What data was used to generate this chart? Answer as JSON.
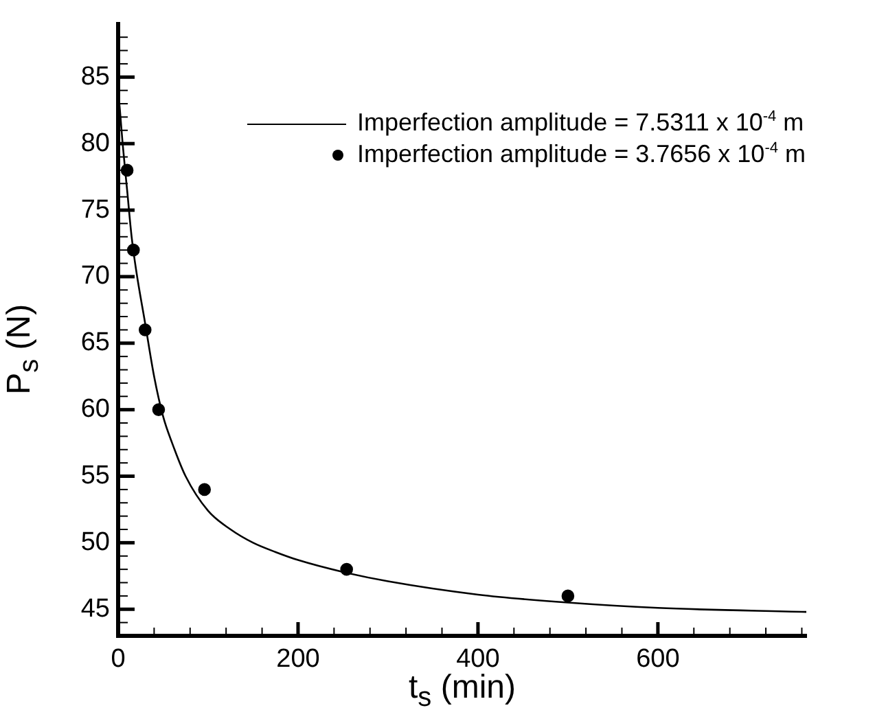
{
  "chart_data": {
    "type": "line",
    "xlabel": "t$_{s}$ (min)",
    "ylabel": "P$_{s}$ (N)",
    "xlim": [
      0,
      765
    ],
    "ylim": [
      43,
      89
    ],
    "xticks": [
      0,
      {
        "value": 40,
        "label": null
      },
      {
        "value": 80,
        "label": null
      },
      {
        "value": 120,
        "label": null
      },
      {
        "value": 160,
        "label": null
      },
      200,
      {
        "value": 240,
        "label": null
      },
      {
        "value": 280,
        "label": null
      },
      {
        "value": 320,
        "label": null
      },
      {
        "value": 360,
        "label": null
      },
      400,
      {
        "value": 440,
        "label": null
      },
      {
        "value": 480,
        "label": null
      },
      {
        "value": 520,
        "label": null
      },
      {
        "value": 560,
        "label": null
      },
      600,
      {
        "value": 640,
        "label": null
      },
      {
        "value": 680,
        "label": null
      },
      {
        "value": 720,
        "label": null
      },
      {
        "value": 760,
        "label": null
      }
    ],
    "yticks": [
      {
        "value": 44,
        "label": null
      },
      45,
      {
        "value": 46,
        "label": null
      },
      {
        "value": 47,
        "label": null
      },
      {
        "value": 48,
        "label": null
      },
      {
        "value": 49,
        "label": null
      },
      50,
      {
        "value": 51,
        "label": null
      },
      {
        "value": 52,
        "label": null
      },
      {
        "value": 53,
        "label": null
      },
      {
        "value": 54,
        "label": null
      },
      55,
      {
        "value": 56,
        "label": null
      },
      {
        "value": 57,
        "label": null
      },
      {
        "value": 58,
        "label": null
      },
      {
        "value": 59,
        "label": null
      },
      60,
      {
        "value": 61,
        "label": null
      },
      {
        "value": 62,
        "label": null
      },
      {
        "value": 63,
        "label": null
      },
      {
        "value": 64,
        "label": null
      },
      65,
      {
        "value": 66,
        "label": null
      },
      {
        "value": 67,
        "label": null
      },
      {
        "value": 68,
        "label": null
      },
      {
        "value": 69,
        "label": null
      },
      70,
      {
        "value": 71,
        "label": null
      },
      {
        "value": 72,
        "label": null
      },
      {
        "value": 73,
        "label": null
      },
      {
        "value": 74,
        "label": null
      },
      75,
      {
        "value": 76,
        "label": null
      },
      {
        "value": 77,
        "label": null
      },
      {
        "value": 78,
        "label": null
      },
      {
        "value": 79,
        "label": null
      },
      80,
      {
        "value": 81,
        "label": null
      },
      {
        "value": 82,
        "label": null
      },
      {
        "value": 83,
        "label": null
      },
      {
        "value": 84,
        "label": null
      },
      85,
      {
        "value": 86,
        "label": null
      },
      {
        "value": 87,
        "label": null
      },
      {
        "value": 88,
        "label": null
      }
    ],
    "grid": false,
    "legend": "top right",
    "series": [
      {
        "name": "Imperfection amplitude = 7.5311 x 10$^{-4}$ m",
        "color": "#000000",
        "marker": "none",
        "line_style": "solid",
        "x": [
          0,
          2,
          5,
          10,
          15,
          20,
          30,
          40,
          50,
          60,
          75,
          100,
          125,
          150,
          175,
          200,
          250,
          300,
          400,
          500,
          600,
          765
        ],
        "values": [
          84,
          82.5,
          80,
          76.5,
          73,
          70.5,
          66.5,
          62.5,
          59.5,
          57.5,
          55,
          52.4,
          51,
          50,
          49.3,
          48.7,
          47.8,
          47.1,
          46.1,
          45.5,
          45.1,
          44.8
        ]
      },
      {
        "name": "Imperfection amplitude = 3.7656 x 10$^{-4}$ m",
        "type": "scatter",
        "color": "#000000",
        "marker": "circle",
        "x": [
          10,
          17,
          30,
          45,
          96,
          254,
          500
        ],
        "values": [
          78,
          72,
          66,
          60,
          54,
          48,
          46
        ]
      }
    ]
  }
}
